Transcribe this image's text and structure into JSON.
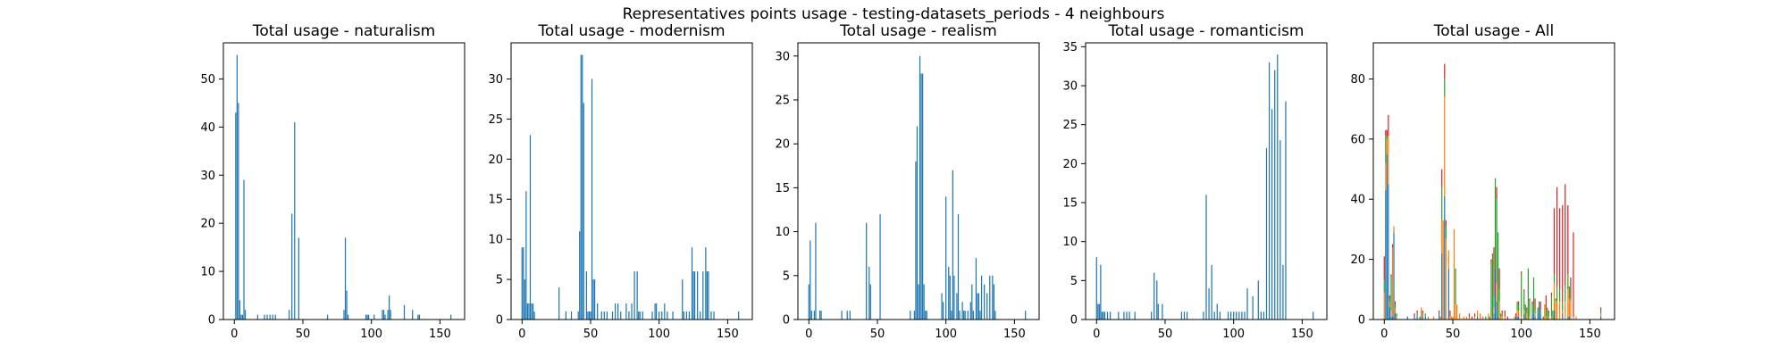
{
  "suptitle": "Representatives points usage - testing-datasets_periods - 4 neighbours",
  "colors": {
    "naturalism": "#1f77b4",
    "modernism": "#ff7f0e",
    "realism": "#2ca02c",
    "romanticism": "#d62728"
  },
  "chart_data": [
    {
      "type": "bar",
      "title": "Total usage - naturalism",
      "xlim": [
        -8,
        168
      ],
      "ylim": [
        0,
        57.5
      ],
      "xticks": [
        0,
        50,
        100,
        150
      ],
      "yticks": [
        0,
        10,
        20,
        30,
        40,
        50
      ],
      "series": [
        {
          "x": [
            1,
            2,
            3,
            4,
            5,
            6,
            7,
            8,
            17,
            22,
            24,
            26,
            28,
            30,
            40,
            42,
            44,
            47,
            68,
            80,
            81,
            82,
            83,
            96,
            97,
            98,
            102,
            108,
            109,
            110,
            112,
            113,
            114,
            124,
            130,
            134,
            135,
            158
          ],
          "values": [
            43,
            55,
            45,
            4,
            1,
            1,
            29,
            2,
            1,
            1,
            1,
            1,
            1,
            1,
            2,
            22,
            41,
            17,
            1,
            2,
            17,
            6,
            1,
            1,
            1,
            1,
            1,
            2,
            2,
            1,
            2,
            5,
            2,
            3,
            2,
            1,
            1,
            1
          ]
        }
      ]
    },
    {
      "type": "bar",
      "title": "Total usage - modernism",
      "xlim": [
        -8,
        168
      ],
      "ylim": [
        0,
        34.5
      ],
      "xticks": [
        0,
        50,
        100,
        150
      ],
      "yticks": [
        0,
        5,
        10,
        15,
        20,
        25,
        30
      ],
      "series": [
        {
          "x": [
            0,
            1,
            2,
            3,
            4,
            5,
            6,
            7,
            8,
            9,
            27,
            32,
            36,
            41,
            42,
            43,
            44,
            45,
            47,
            48,
            49,
            50,
            51,
            52,
            53,
            55,
            58,
            60,
            62,
            66,
            68,
            70,
            72,
            76,
            78,
            80,
            82,
            84,
            85,
            86,
            88,
            95,
            97,
            98,
            100,
            102,
            104,
            106,
            110,
            117,
            118,
            120,
            122,
            124,
            125,
            126,
            128,
            130,
            132,
            134,
            135,
            136,
            138,
            140,
            158
          ],
          "values": [
            9,
            9,
            5,
            16,
            2,
            2,
            23,
            2,
            2,
            1,
            4,
            1,
            1,
            1,
            11,
            33,
            33,
            27,
            6,
            1,
            1,
            1,
            30,
            5,
            5,
            2,
            1,
            1,
            1,
            1,
            2,
            2,
            1,
            2,
            1,
            2,
            6,
            6,
            1,
            1,
            1,
            1,
            2,
            2,
            1,
            1,
            2,
            1,
            1,
            5,
            1,
            1,
            1,
            9,
            6,
            6,
            6,
            1,
            6,
            9,
            6,
            6,
            1,
            1,
            1
          ]
        }
      ]
    },
    {
      "type": "bar",
      "title": "Total usage - realism",
      "xlim": [
        -8,
        168
      ],
      "ylim": [
        0,
        31.5
      ],
      "xticks": [
        0,
        50,
        100,
        150
      ],
      "yticks": [
        0,
        5,
        10,
        15,
        20,
        25,
        30
      ],
      "series": [
        {
          "x": [
            0,
            1,
            2,
            4,
            5,
            8,
            9,
            24,
            28,
            30,
            42,
            44,
            45,
            52,
            74,
            77,
            78,
            79,
            80,
            81,
            82,
            83,
            84,
            85,
            86,
            97,
            98,
            100,
            102,
            103,
            104,
            105,
            106,
            108,
            109,
            110,
            112,
            113,
            114,
            116,
            118,
            119,
            120,
            122,
            123,
            124,
            125,
            126,
            128,
            130,
            132,
            134,
            135,
            136,
            158
          ],
          "values": [
            4,
            9,
            1,
            1,
            11,
            1,
            1,
            1,
            1,
            1,
            11,
            6,
            4,
            12,
            1,
            1,
            18,
            22,
            4,
            30,
            28,
            28,
            4,
            1,
            1,
            3,
            2,
            14,
            6,
            5,
            1,
            17,
            5,
            3,
            12,
            1,
            2,
            1,
            1,
            1,
            2,
            4,
            1,
            7,
            3,
            3,
            1,
            5,
            4,
            3,
            5,
            5,
            4,
            1,
            1
          ]
        }
      ]
    },
    {
      "type": "bar",
      "title": "Total usage - romanticism",
      "xlim": [
        -8,
        168
      ],
      "ylim": [
        0,
        35.5
      ],
      "xticks": [
        0,
        50,
        100,
        150
      ],
      "yticks": [
        0,
        5,
        10,
        15,
        20,
        25,
        30,
        35
      ],
      "series": [
        {
          "x": [
            0,
            1,
            2,
            3,
            4,
            5,
            6,
            8,
            10,
            16,
            20,
            22,
            24,
            28,
            40,
            42,
            44,
            45,
            48,
            62,
            64,
            66,
            78,
            80,
            82,
            84,
            86,
            88,
            90,
            96,
            98,
            100,
            102,
            104,
            106,
            108,
            110,
            114,
            118,
            120,
            122,
            124,
            126,
            128,
            130,
            132,
            134,
            136,
            138,
            158
          ],
          "values": [
            8,
            2,
            2,
            7,
            1,
            1,
            1,
            1,
            1,
            1,
            1,
            1,
            1,
            1,
            1,
            6,
            5,
            2,
            2,
            1,
            1,
            1,
            1,
            16,
            4,
            7,
            1,
            2,
            1,
            1,
            1,
            1,
            1,
            1,
            1,
            1,
            4,
            3,
            5,
            1,
            1,
            22,
            33,
            27,
            32,
            34,
            23,
            7,
            28,
            1
          ]
        }
      ]
    },
    {
      "type": "bar",
      "title": "Total usage - All",
      "stacked": true,
      "xlim": [
        -8,
        168
      ],
      "ylim": [
        0,
        92
      ],
      "xticks": [
        0,
        50,
        100,
        150
      ],
      "yticks": [
        0,
        20,
        40,
        60,
        80
      ],
      "x": [
        0,
        1,
        2,
        3,
        4,
        5,
        6,
        7,
        8,
        9,
        17,
        22,
        24,
        26,
        27,
        28,
        30,
        32,
        36,
        40,
        41,
        42,
        43,
        44,
        45,
        47,
        48,
        49,
        50,
        51,
        52,
        53,
        55,
        58,
        60,
        62,
        64,
        66,
        68,
        70,
        72,
        74,
        76,
        77,
        78,
        79,
        80,
        81,
        82,
        83,
        84,
        85,
        86,
        88,
        90,
        95,
        96,
        97,
        98,
        100,
        102,
        103,
        104,
        105,
        106,
        108,
        109,
        110,
        112,
        113,
        114,
        116,
        117,
        118,
        119,
        120,
        122,
        123,
        124,
        125,
        126,
        128,
        130,
        132,
        134,
        135,
        136,
        138,
        140,
        158
      ],
      "series": [
        {
          "values": [
            0,
            43,
            55,
            45,
            4,
            1,
            1,
            29,
            2,
            0,
            1,
            1,
            1,
            1,
            0,
            1,
            1,
            0,
            0,
            2,
            0,
            22,
            0,
            41,
            0,
            17,
            0,
            0,
            0,
            0,
            0,
            0,
            0,
            0,
            0,
            0,
            0,
            0,
            1,
            0,
            0,
            0,
            0,
            0,
            0,
            0,
            2,
            17,
            6,
            1,
            0,
            0,
            0,
            0,
            0,
            0,
            1,
            1,
            1,
            0,
            2,
            0,
            0,
            0,
            0,
            2,
            2,
            1,
            2,
            5,
            2,
            0,
            0,
            0,
            0,
            0,
            0,
            0,
            3,
            0,
            0,
            0,
            2,
            0,
            1,
            1,
            0,
            0,
            0,
            1
          ]
        },
        {
          "values": [
            9,
            9,
            5,
            16,
            2,
            2,
            23,
            2,
            2,
            1,
            0,
            0,
            0,
            0,
            4,
            0,
            0,
            1,
            1,
            0,
            1,
            11,
            33,
            33,
            27,
            6,
            1,
            1,
            1,
            30,
            5,
            5,
            2,
            1,
            1,
            1,
            0,
            1,
            2,
            2,
            1,
            0,
            2,
            0,
            1,
            0,
            2,
            0,
            6,
            0,
            6,
            1,
            1,
            1,
            0,
            1,
            0,
            2,
            2,
            1,
            1,
            0,
            2,
            0,
            1,
            0,
            0,
            1,
            0,
            0,
            0,
            0,
            5,
            1,
            0,
            1,
            1,
            0,
            9,
            6,
            6,
            6,
            1,
            6,
            9,
            6,
            6,
            1,
            1,
            1
          ]
        },
        {
          "values": [
            4,
            9,
            1,
            0,
            1,
            11,
            0,
            0,
            1,
            1,
            0,
            0,
            1,
            0,
            0,
            1,
            1,
            0,
            0,
            0,
            0,
            11,
            0,
            6,
            4,
            0,
            0,
            0,
            0,
            0,
            12,
            0,
            0,
            0,
            0,
            0,
            0,
            0,
            0,
            0,
            0,
            1,
            0,
            1,
            18,
            22,
            4,
            30,
            28,
            28,
            4,
            1,
            1,
            0,
            0,
            0,
            0,
            3,
            2,
            14,
            6,
            5,
            1,
            17,
            5,
            3,
            12,
            1,
            2,
            1,
            1,
            1,
            0,
            2,
            4,
            1,
            7,
            3,
            3,
            1,
            5,
            4,
            3,
            5,
            5,
            4,
            1,
            0,
            0,
            1
          ]
        },
        {
          "values": [
            8,
            2,
            2,
            7,
            1,
            1,
            1,
            0,
            1,
            0,
            0,
            1,
            1,
            0,
            0,
            1,
            0,
            0,
            0,
            1,
            0,
            6,
            0,
            5,
            2,
            0,
            2,
            0,
            0,
            0,
            0,
            0,
            0,
            0,
            0,
            1,
            1,
            1,
            0,
            0,
            0,
            0,
            0,
            0,
            1,
            0,
            16,
            0,
            4,
            0,
            7,
            0,
            1,
            2,
            1,
            0,
            1,
            0,
            1,
            1,
            1,
            0,
            1,
            0,
            1,
            1,
            0,
            4,
            0,
            0,
            3,
            0,
            0,
            5,
            0,
            1,
            1,
            0,
            22,
            0,
            33,
            27,
            32,
            34,
            23,
            0,
            7,
            28,
            0,
            1
          ]
        }
      ]
    }
  ]
}
